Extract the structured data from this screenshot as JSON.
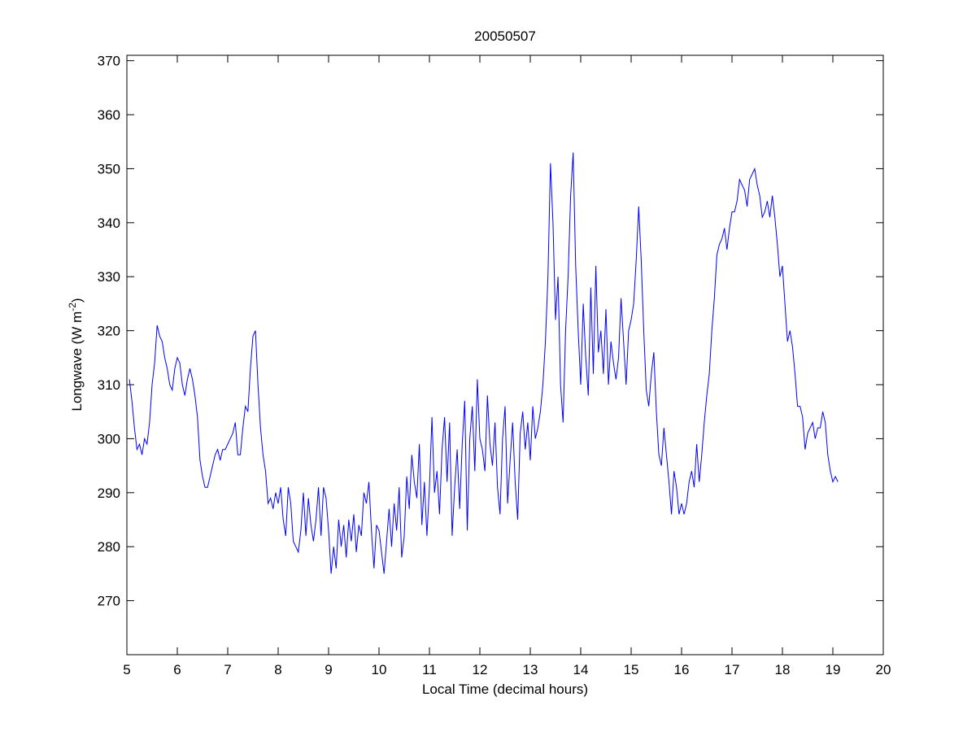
{
  "chart_data": {
    "type": "line",
    "title": "20050507",
    "xlabel": "Local Time (decimal hours)",
    "ylabel_main": "Longwave (W m",
    "ylabel_sup": "-2",
    "ylabel_close": ")",
    "xlim": [
      5,
      20
    ],
    "ylim": [
      260,
      371
    ],
    "xticks": [
      5,
      6,
      7,
      8,
      9,
      10,
      11,
      12,
      13,
      14,
      15,
      16,
      17,
      18,
      19,
      20
    ],
    "yticks": [
      270,
      280,
      290,
      300,
      310,
      320,
      330,
      340,
      350,
      360,
      370
    ],
    "grid": false,
    "series": [
      {
        "name": "Longwave",
        "color": "#0000ff",
        "x": [
          5.05,
          5.1,
          5.15,
          5.2,
          5.25,
          5.3,
          5.35,
          5.4,
          5.45,
          5.5,
          5.55,
          5.6,
          5.65,
          5.7,
          5.75,
          5.8,
          5.85,
          5.9,
          5.95,
          6.0,
          6.05,
          6.1,
          6.15,
          6.2,
          6.25,
          6.3,
          6.35,
          6.4,
          6.45,
          6.5,
          6.55,
          6.6,
          6.65,
          6.7,
          6.75,
          6.8,
          6.85,
          6.9,
          6.95,
          7.0,
          7.05,
          7.1,
          7.15,
          7.2,
          7.25,
          7.3,
          7.35,
          7.4,
          7.45,
          7.5,
          7.55,
          7.6,
          7.65,
          7.7,
          7.75,
          7.8,
          7.85,
          7.9,
          7.95,
          8.0,
          8.05,
          8.1,
          8.15,
          8.2,
          8.25,
          8.3,
          8.35,
          8.4,
          8.45,
          8.5,
          8.55,
          8.6,
          8.65,
          8.7,
          8.75,
          8.8,
          8.85,
          8.9,
          8.95,
          9.0,
          9.05,
          9.1,
          9.15,
          9.2,
          9.25,
          9.3,
          9.35,
          9.4,
          9.45,
          9.5,
          9.55,
          9.6,
          9.65,
          9.7,
          9.75,
          9.8,
          9.85,
          9.9,
          9.95,
          10.0,
          10.05,
          10.1,
          10.15,
          10.2,
          10.25,
          10.3,
          10.35,
          10.4,
          10.45,
          10.5,
          10.55,
          10.6,
          10.65,
          10.7,
          10.75,
          10.8,
          10.85,
          10.9,
          10.95,
          11.0,
          11.05,
          11.1,
          11.15,
          11.2,
          11.25,
          11.3,
          11.35,
          11.4,
          11.45,
          11.5,
          11.55,
          11.6,
          11.65,
          11.7,
          11.75,
          11.8,
          11.85,
          11.9,
          11.95,
          12.0,
          12.05,
          12.1,
          12.15,
          12.2,
          12.25,
          12.3,
          12.35,
          12.4,
          12.45,
          12.5,
          12.55,
          12.6,
          12.65,
          12.7,
          12.75,
          12.8,
          12.85,
          12.9,
          12.95,
          13.0,
          13.05,
          13.1,
          13.15,
          13.2,
          13.25,
          13.3,
          13.35,
          13.4,
          13.45,
          13.5,
          13.55,
          13.6,
          13.65,
          13.7,
          13.75,
          13.8,
          13.85,
          13.9,
          13.95,
          14.0,
          14.05,
          14.1,
          14.15,
          14.2,
          14.25,
          14.3,
          14.35,
          14.4,
          14.45,
          14.5,
          14.55,
          14.6,
          14.65,
          14.7,
          14.75,
          14.8,
          14.85,
          14.9,
          14.95,
          15.0,
          15.05,
          15.1,
          15.15,
          15.2,
          15.25,
          15.3,
          15.35,
          15.4,
          15.45,
          15.5,
          15.55,
          15.6,
          15.65,
          15.7,
          15.75,
          15.8,
          15.85,
          15.9,
          15.95,
          16.0,
          16.05,
          16.1,
          16.15,
          16.2,
          16.25,
          16.3,
          16.35,
          16.4,
          16.45,
          16.5,
          16.55,
          16.6,
          16.65,
          16.7,
          16.75,
          16.8,
          16.85,
          16.9,
          16.95,
          17.0,
          17.05,
          17.1,
          17.15,
          17.2,
          17.25,
          17.3,
          17.35,
          17.4,
          17.45,
          17.5,
          17.55,
          17.6,
          17.65,
          17.7,
          17.75,
          17.8,
          17.85,
          17.9,
          17.95,
          18.0,
          18.05,
          18.1,
          18.15,
          18.2,
          18.25,
          18.3,
          18.35,
          18.4,
          18.45,
          18.5,
          18.55,
          18.6,
          18.65,
          18.7,
          18.75,
          18.8,
          18.85,
          18.9,
          18.95,
          19.0,
          19.05,
          19.1
        ],
        "y": [
          311,
          307,
          302,
          298,
          299,
          297,
          300,
          299,
          303,
          310,
          314,
          321,
          319,
          318,
          315,
          313,
          310,
          309,
          313,
          315,
          314,
          310,
          308,
          311,
          313,
          311,
          308,
          304,
          296,
          293,
          291,
          291,
          293,
          295,
          297,
          298,
          296,
          298,
          298,
          299,
          300,
          301,
          303,
          297,
          297,
          302,
          306,
          305,
          313,
          319,
          320,
          310,
          302,
          297,
          294,
          288,
          289,
          287,
          290,
          288,
          291,
          285,
          282,
          291,
          288,
          281,
          280,
          279,
          283,
          290,
          282,
          289,
          284,
          281,
          285,
          291,
          282,
          291,
          289,
          283,
          275,
          280,
          276,
          285,
          280,
          284,
          278,
          285,
          281,
          286,
          279,
          284,
          282,
          290,
          288,
          292,
          283,
          276,
          284,
          283,
          279,
          275,
          281,
          287,
          280,
          288,
          283,
          291,
          278,
          282,
          293,
          287,
          297,
          292,
          289,
          299,
          284,
          292,
          282,
          291,
          304,
          290,
          294,
          286,
          298,
          304,
          292,
          303,
          282,
          291,
          298,
          287,
          299,
          307,
          283,
          300,
          306,
          294,
          311,
          300,
          298,
          294,
          308,
          299,
          295,
          303,
          291,
          286,
          300,
          306,
          288,
          296,
          303,
          292,
          285,
          301,
          305,
          298,
          303,
          296,
          306,
          300,
          302,
          305,
          310,
          318,
          330,
          351,
          340,
          322,
          330,
          310,
          303,
          320,
          330,
          345,
          353,
          332,
          320,
          310,
          325,
          315,
          308,
          328,
          312,
          332,
          316,
          320,
          312,
          324,
          310,
          318,
          314,
          311,
          315,
          326,
          318,
          310,
          320,
          322,
          325,
          333,
          343,
          333,
          320,
          309,
          306,
          312,
          316,
          305,
          297,
          295,
          302,
          297,
          292,
          286,
          294,
          291,
          286,
          288,
          286,
          288,
          292,
          294,
          291,
          299,
          292,
          297,
          303,
          308,
          312,
          320,
          326,
          334,
          336,
          337,
          339,
          335,
          339,
          342,
          342,
          344,
          348,
          347,
          346,
          343,
          348,
          349,
          350,
          347,
          345,
          341,
          342,
          344,
          341,
          345,
          341,
          336,
          330,
          332,
          325,
          318,
          320,
          317,
          312,
          306,
          306,
          304,
          298,
          301,
          302,
          303,
          300,
          302,
          302,
          305,
          303,
          297,
          294,
          292,
          293,
          292
        ]
      }
    ]
  }
}
